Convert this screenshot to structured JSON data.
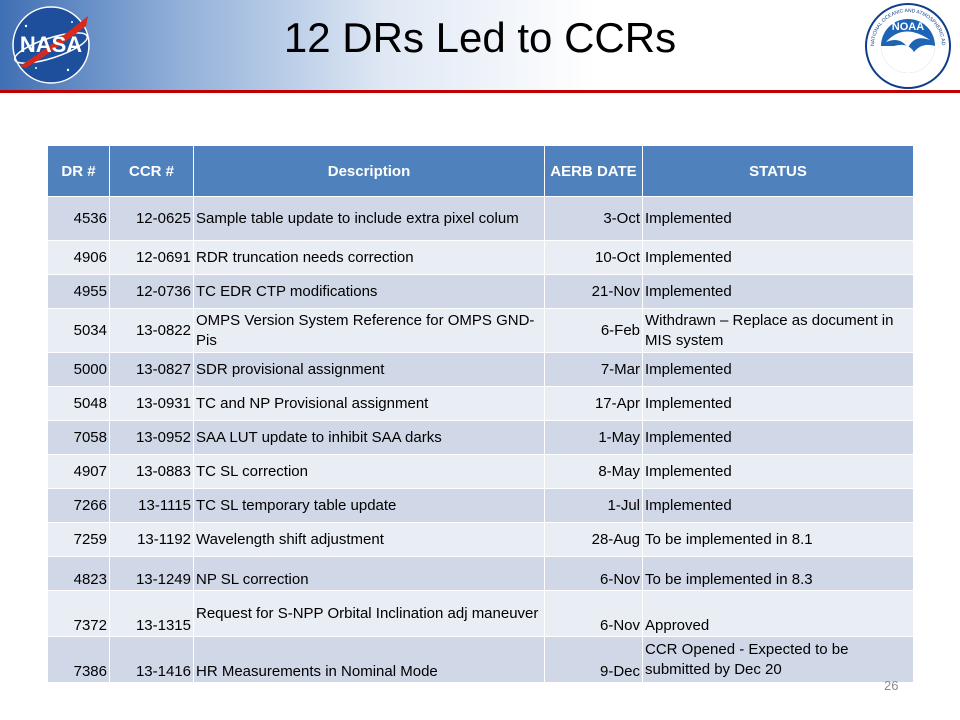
{
  "slide": {
    "title": "12 DRs Led to CCRs",
    "page_number": "26"
  },
  "logos": {
    "left": {
      "text": "NASA"
    },
    "right": {
      "text": "NOAA",
      "ring_text": "NATIONAL OCEANIC AND ATMOSPHERIC ADMINISTRATION · U.S. DEPARTMENT OF COMMERCE"
    }
  },
  "table": {
    "headers": [
      "DR #",
      "CCR #",
      "Description",
      "AERB DATE",
      "STATUS"
    ],
    "rows": [
      [
        "4536",
        "12-0625",
        "Sample table update to include extra pixel colum",
        "3-Oct",
        "Implemented"
      ],
      [
        "4906",
        "12-0691",
        "RDR truncation needs correction",
        "10-Oct",
        "Implemented"
      ],
      [
        "4955",
        "12-0736",
        "TC EDR CTP modifications",
        "21-Nov",
        "Implemented"
      ],
      [
        "5034",
        "13-0822",
        "OMPS Version System Reference for OMPS GND-Pis",
        "6-Feb",
        "Withdrawn – Replace as document in MIS system"
      ],
      [
        "5000",
        "13-0827",
        "SDR provisional assignment",
        "7-Mar",
        "Implemented"
      ],
      [
        "5048",
        "13-0931",
        "TC and NP Provisional assignment",
        "17-Apr",
        "Implemented"
      ],
      [
        "7058",
        "13-0952",
        "SAA LUT update to inhibit SAA darks",
        "1-May",
        "Implemented"
      ],
      [
        "4907",
        "13-0883",
        "TC SL correction",
        "8-May",
        "Implemented"
      ],
      [
        "7266",
        "13-1115",
        "TC SL temporary table update",
        "1-Jul",
        "Implemented"
      ],
      [
        "7259",
        "13-1192",
        "Wavelength shift adjustment",
        "28-Aug",
        "To be implemented in 8.1"
      ],
      [
        "4823",
        "13-1249",
        "NP SL correction",
        "6-Nov",
        "To be implemented in 8.3"
      ],
      [
        "7372",
        "13-1315",
        "Request for S-NPP Orbital Inclination adj maneuver",
        "6-Nov",
        "Approved"
      ],
      [
        "7386",
        "13-1416",
        "HR Measurements in Nominal Mode",
        "9-Dec",
        "CCR Opened - Expected to be submitted by Dec 20"
      ]
    ]
  }
}
